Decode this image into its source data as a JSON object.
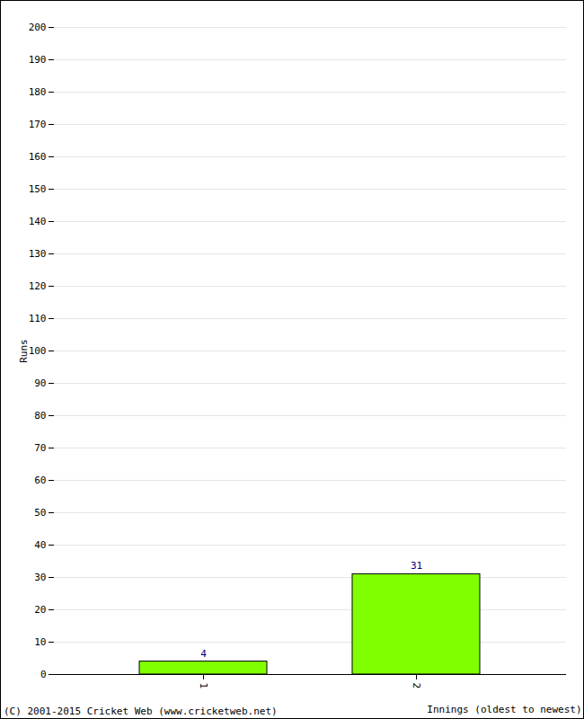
{
  "chart_data": {
    "type": "bar",
    "categories": [
      "1",
      "2"
    ],
    "values": [
      4,
      31
    ],
    "color": "#80ff00",
    "x_label": "Innings (oldest to newest)",
    "y_label": "Runs",
    "ylim": [
      0,
      200
    ],
    "yticks": [
      0,
      10,
      20,
      30,
      40,
      50,
      60,
      70,
      80,
      90,
      100,
      110,
      120,
      130,
      140,
      150,
      160,
      170,
      180,
      190,
      200
    ],
    "grid": true,
    "data_labels": true,
    "caption": "(C) 2001-2015 Cricket Web (www.cricketweb.net)"
  }
}
